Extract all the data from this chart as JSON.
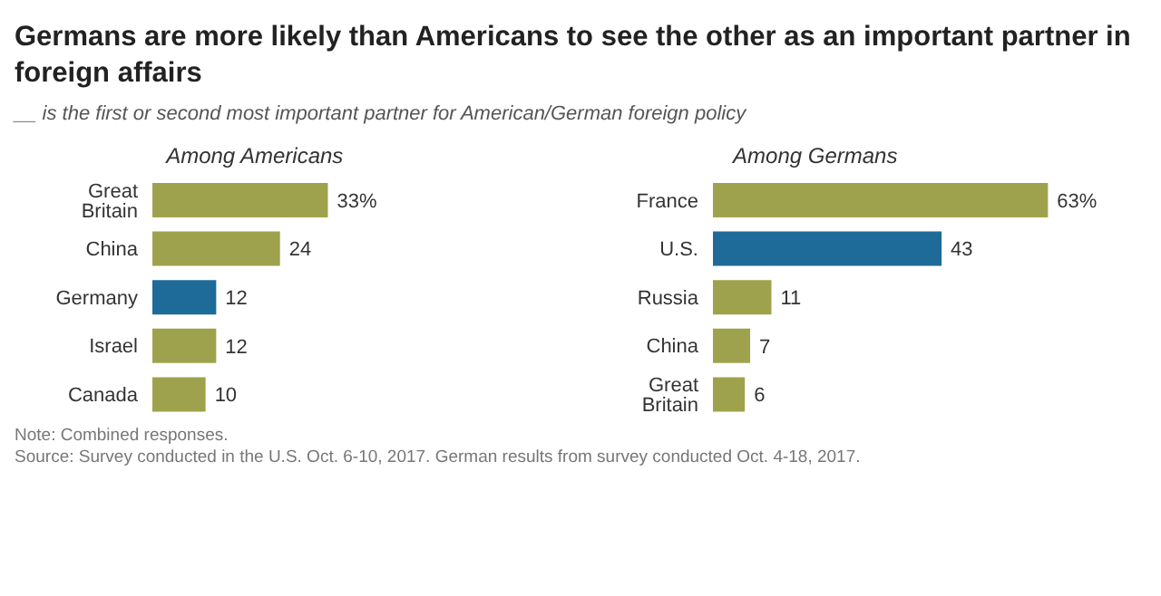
{
  "chart_data": [
    {
      "type": "other",
      "title": "Germans are more likely than Americans to see the other as an important partner in foreign affairs",
      "subtitle": "__ is the first or second most important partner for American/German foreign policy",
      "annotations": [
        "Note: Combined responses.",
        "Source: Survey conducted in the U.S. Oct. 6-10, 2017. German results from survey conducted Oct. 4-18, 2017."
      ]
    },
    {
      "type": "bar",
      "orientation": "horizontal",
      "title": "Among Americans",
      "categories": [
        "Great Britain",
        "China",
        "Germany",
        "Israel",
        "Canada"
      ],
      "values": [
        33,
        24,
        12,
        12,
        10
      ],
      "colors": [
        "#9fa24c",
        "#9fa24c",
        "#1e6b99",
        "#9fa24c",
        "#9fa24c"
      ],
      "value_labels": [
        "33%",
        "24",
        "12",
        "12",
        "10"
      ]
    },
    {
      "type": "bar",
      "orientation": "horizontal",
      "title": "Among Germans",
      "categories": [
        "France",
        "U.S.",
        "Russia",
        "China",
        "Great Britain"
      ],
      "values": [
        63,
        43,
        11,
        7,
        6
      ],
      "colors": [
        "#9fa24c",
        "#1e6b99",
        "#9fa24c",
        "#9fa24c",
        "#9fa24c"
      ],
      "value_labels": [
        "63%",
        "43",
        "11",
        "7",
        "6"
      ]
    }
  ]
}
